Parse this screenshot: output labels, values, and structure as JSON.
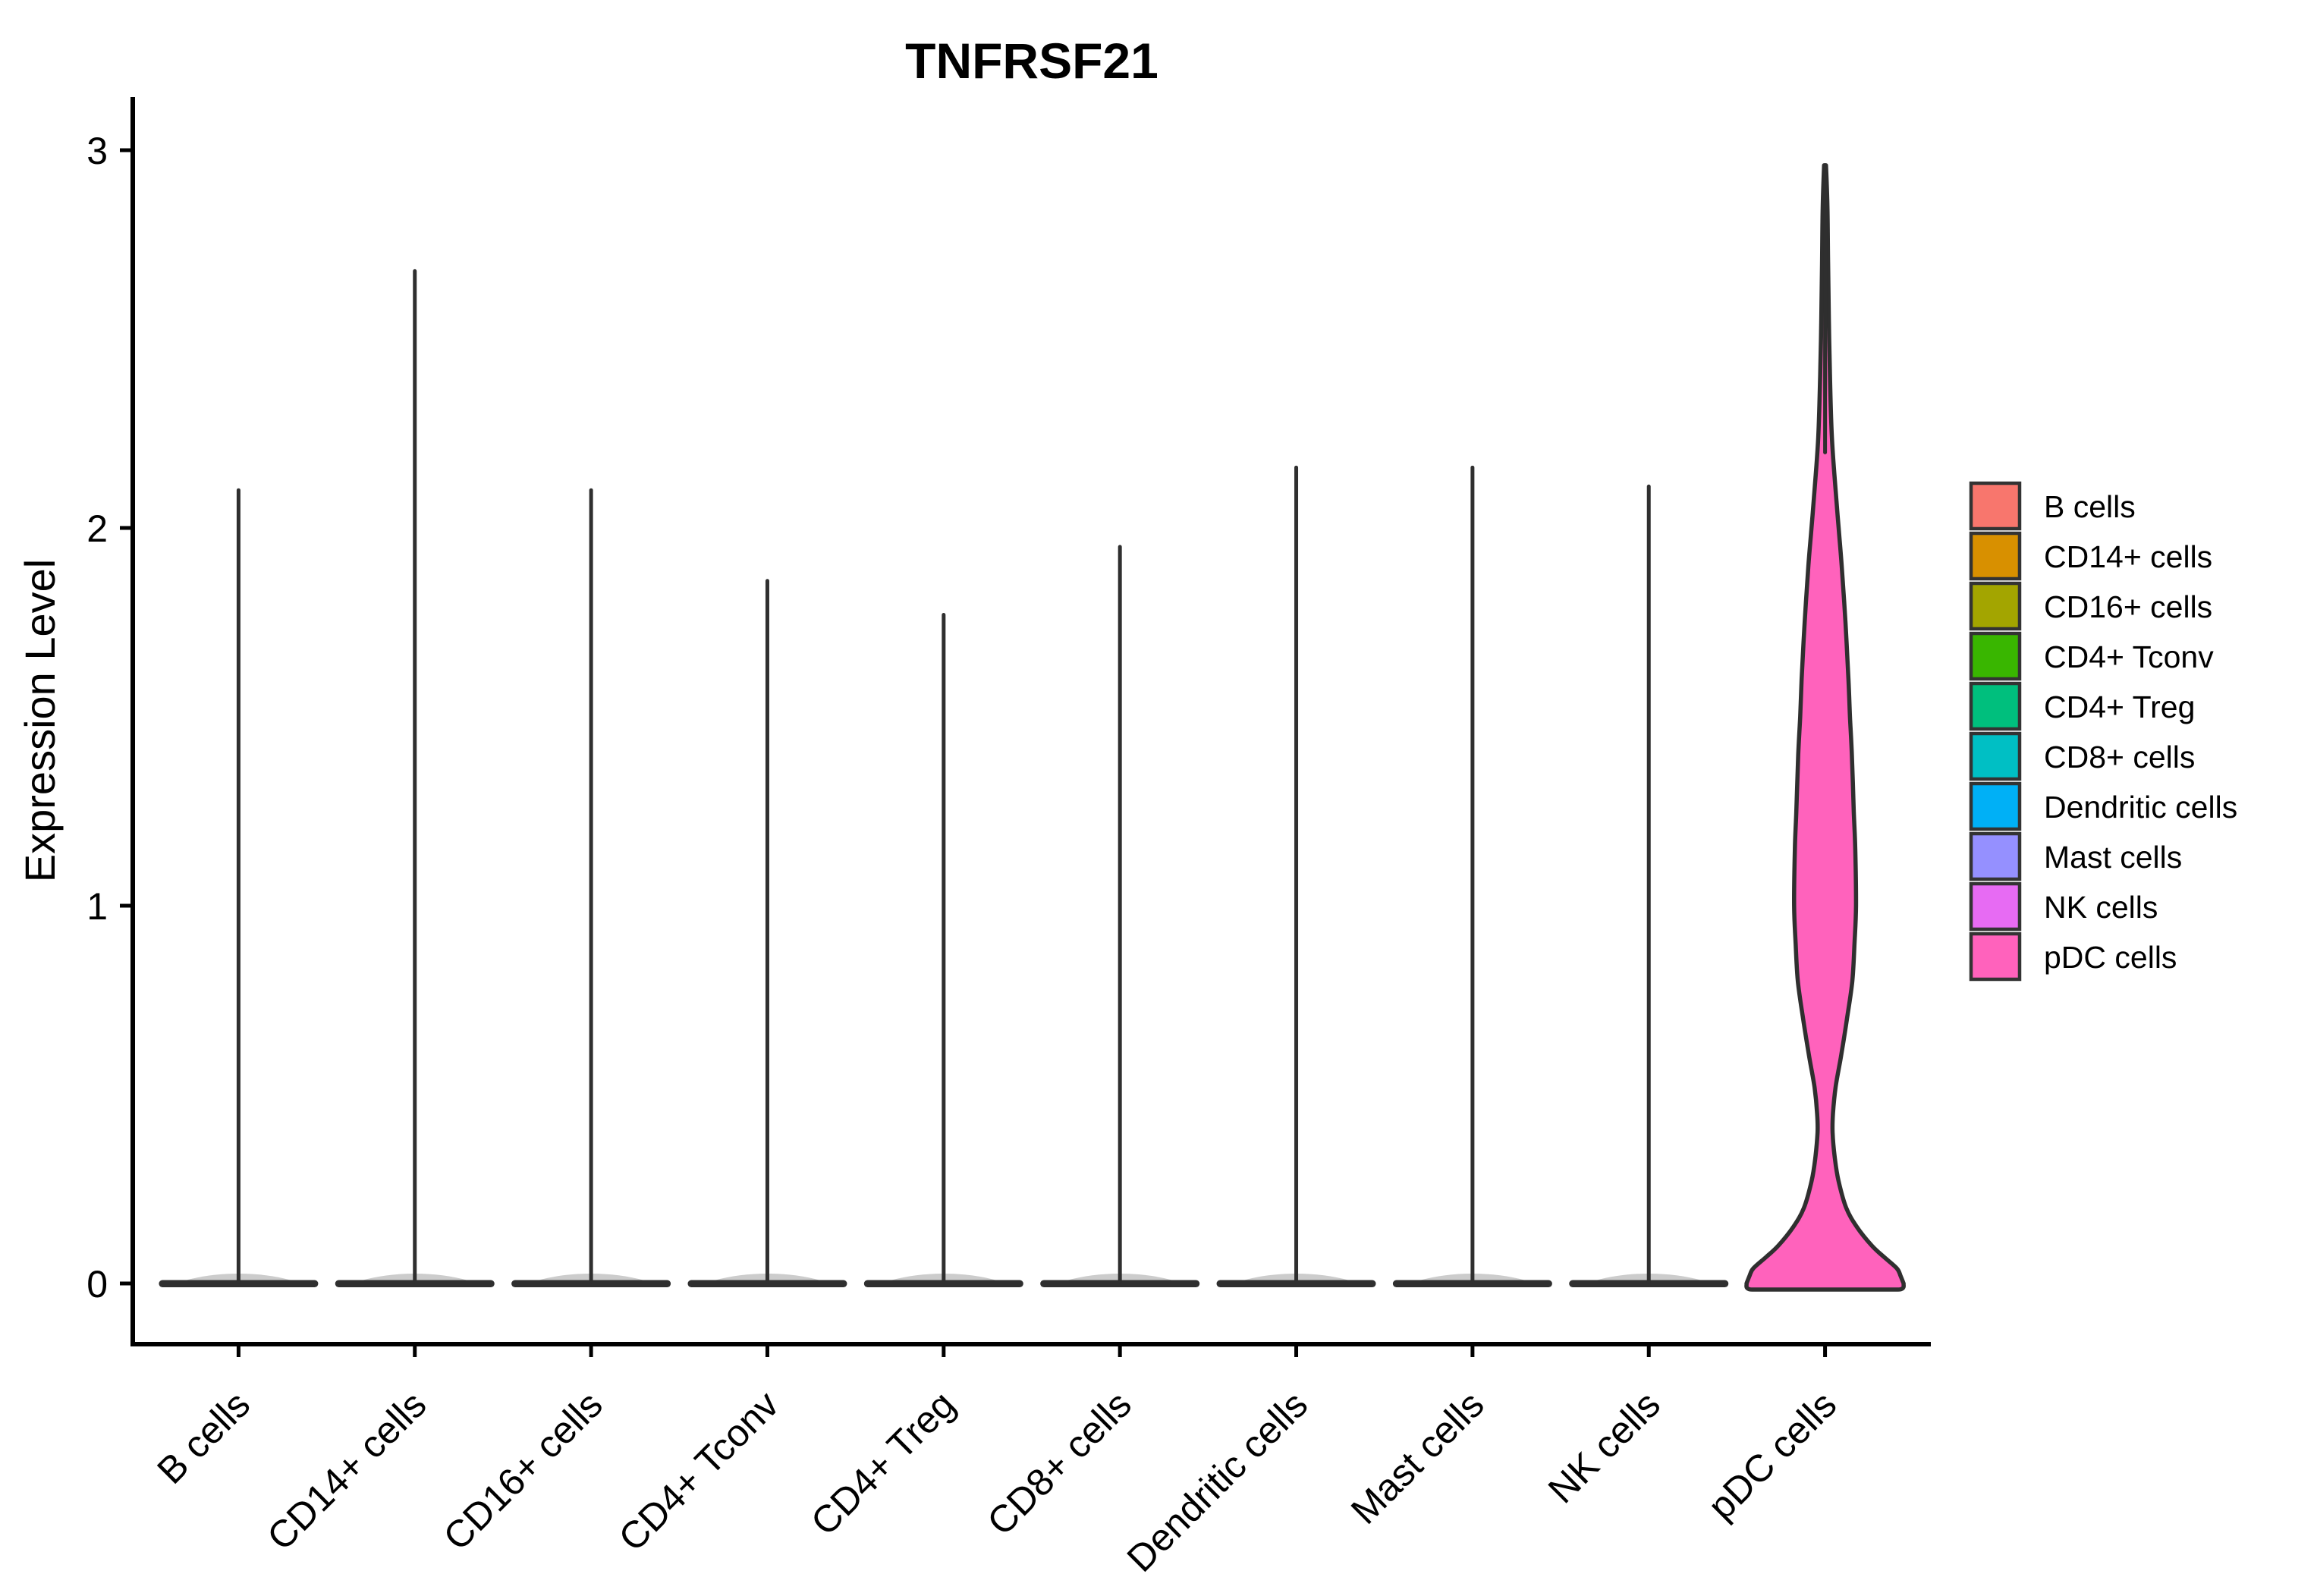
{
  "title": "TNFRSF21",
  "axes": {
    "y_label": "Expression Level",
    "y_ticks": [
      "0",
      "1",
      "2",
      "3"
    ]
  },
  "colors": {
    "background": "#ffffff",
    "axis_line": "#000000",
    "violin_outline": "#2f2f2f",
    "legend_swatch_border": "#333333"
  },
  "chart_data": {
    "type": "violin",
    "title": "TNFRSF21",
    "xlabel": "",
    "ylabel": "Expression Level",
    "ylim": [
      -0.05,
      3.1
    ],
    "yticks": [
      0,
      1,
      2,
      3
    ],
    "grid": false,
    "legend_position": "right",
    "categories": [
      "B cells",
      "CD14+ cells",
      "CD16+ cells",
      "CD4+ Tconv",
      "CD4+ Treg",
      "CD8+ cells",
      "Dendritic cells",
      "Mast cells",
      "NK cells",
      "pDC cells"
    ],
    "series": [
      {
        "name": "B cells",
        "color": "#F8766D",
        "shape": "collapsed",
        "max": 2.1
      },
      {
        "name": "CD14+ cells",
        "color": "#D89000",
        "shape": "collapsed",
        "max": 2.68
      },
      {
        "name": "CD16+ cells",
        "color": "#A3A500",
        "shape": "collapsed",
        "max": 2.1
      },
      {
        "name": "CD4+ Tconv",
        "color": "#39B600",
        "shape": "collapsed",
        "max": 1.86
      },
      {
        "name": "CD4+ Treg",
        "color": "#00BF7D",
        "shape": "collapsed",
        "max": 1.77
      },
      {
        "name": "CD8+ cells",
        "color": "#00BFC4",
        "shape": "collapsed",
        "max": 1.95
      },
      {
        "name": "Dendritic cells",
        "color": "#00B0F6",
        "shape": "collapsed",
        "max": 2.16
      },
      {
        "name": "Mast cells",
        "color": "#9590FF",
        "shape": "collapsed",
        "max": 2.16
      },
      {
        "name": "NK cells",
        "color": "#E76BF3",
        "shape": "collapsed",
        "max": 2.11
      },
      {
        "name": "pDC cells",
        "color": "#FF62BC",
        "shape": "bimodal",
        "max": 2.96,
        "profile": [
          [
            2.96,
            0.012
          ],
          [
            2.85,
            0.03
          ],
          [
            2.7,
            0.038
          ],
          [
            2.55,
            0.048
          ],
          [
            2.4,
            0.062
          ],
          [
            2.24,
            0.086
          ],
          [
            2.1,
            0.133
          ],
          [
            2.0,
            0.171
          ],
          [
            1.9,
            0.21
          ],
          [
            1.75,
            0.257
          ],
          [
            1.6,
            0.295
          ],
          [
            1.5,
            0.314
          ],
          [
            1.4,
            0.338
          ],
          [
            1.25,
            0.362
          ],
          [
            1.15,
            0.381
          ],
          [
            1.0,
            0.39
          ],
          [
            0.9,
            0.371
          ],
          [
            0.8,
            0.343
          ],
          [
            0.7,
            0.276
          ],
          [
            0.6,
            0.2
          ],
          [
            0.52,
            0.133
          ],
          [
            0.45,
            0.1
          ],
          [
            0.4,
            0.095
          ],
          [
            0.33,
            0.124
          ],
          [
            0.27,
            0.171
          ],
          [
            0.2,
            0.267
          ],
          [
            0.15,
            0.4
          ],
          [
            0.1,
            0.59
          ],
          [
            0.07,
            0.743
          ],
          [
            0.04,
            0.905
          ],
          [
            0.02,
            0.952
          ],
          [
            0.0,
            0.99
          ]
        ]
      }
    ],
    "description_modes": "pDC cells show a bimodal distribution with modes near 0 and ~1.0; all other populations collapse to ~0 with sparse tails."
  }
}
